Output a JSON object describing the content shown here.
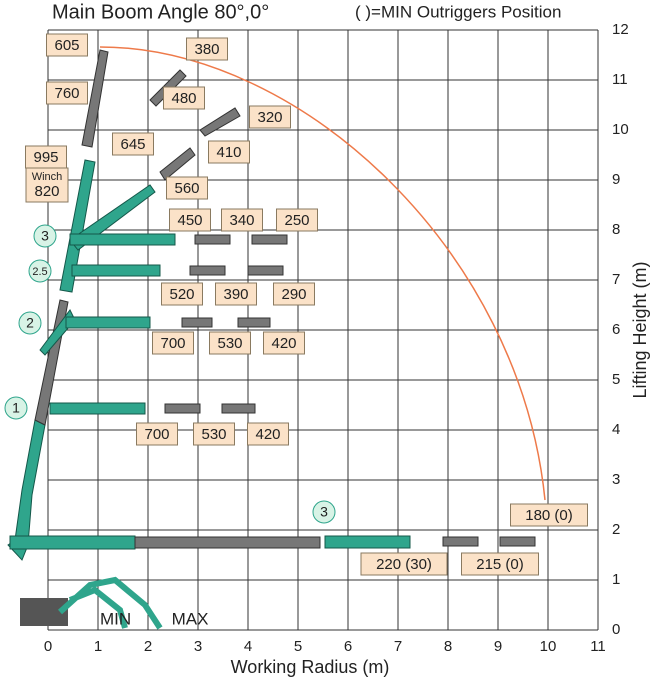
{
  "title": "Main Boom Angle 80°,0°",
  "note": "( )=MIN Outriggers Position",
  "x_axis": {
    "label": "Working Radius (m)",
    "ticks": [
      0,
      1,
      2,
      3,
      4,
      5,
      6,
      7,
      8,
      9,
      10,
      11
    ]
  },
  "y_axis": {
    "label": "Lifting Height (m)",
    "ticks": [
      0,
      1,
      2,
      3,
      4,
      5,
      6,
      7,
      8,
      9,
      10,
      11,
      12
    ]
  },
  "load_labels": [
    "605",
    "380",
    "760",
    "480",
    "320",
    "645",
    "410",
    "995",
    "560",
    "450",
    "340",
    "250",
    "520",
    "390",
    "290",
    "700",
    "530",
    "420",
    "700",
    "530",
    "420",
    "180 (0)",
    "220 (30)",
    "215 (0)"
  ],
  "winch_box": {
    "caption": "Winch",
    "load": "820"
  },
  "stages": [
    "3",
    "2.5",
    "2",
    "1",
    "3"
  ],
  "outrigger_labels": [
    "MIN",
    "MAX"
  ]
}
